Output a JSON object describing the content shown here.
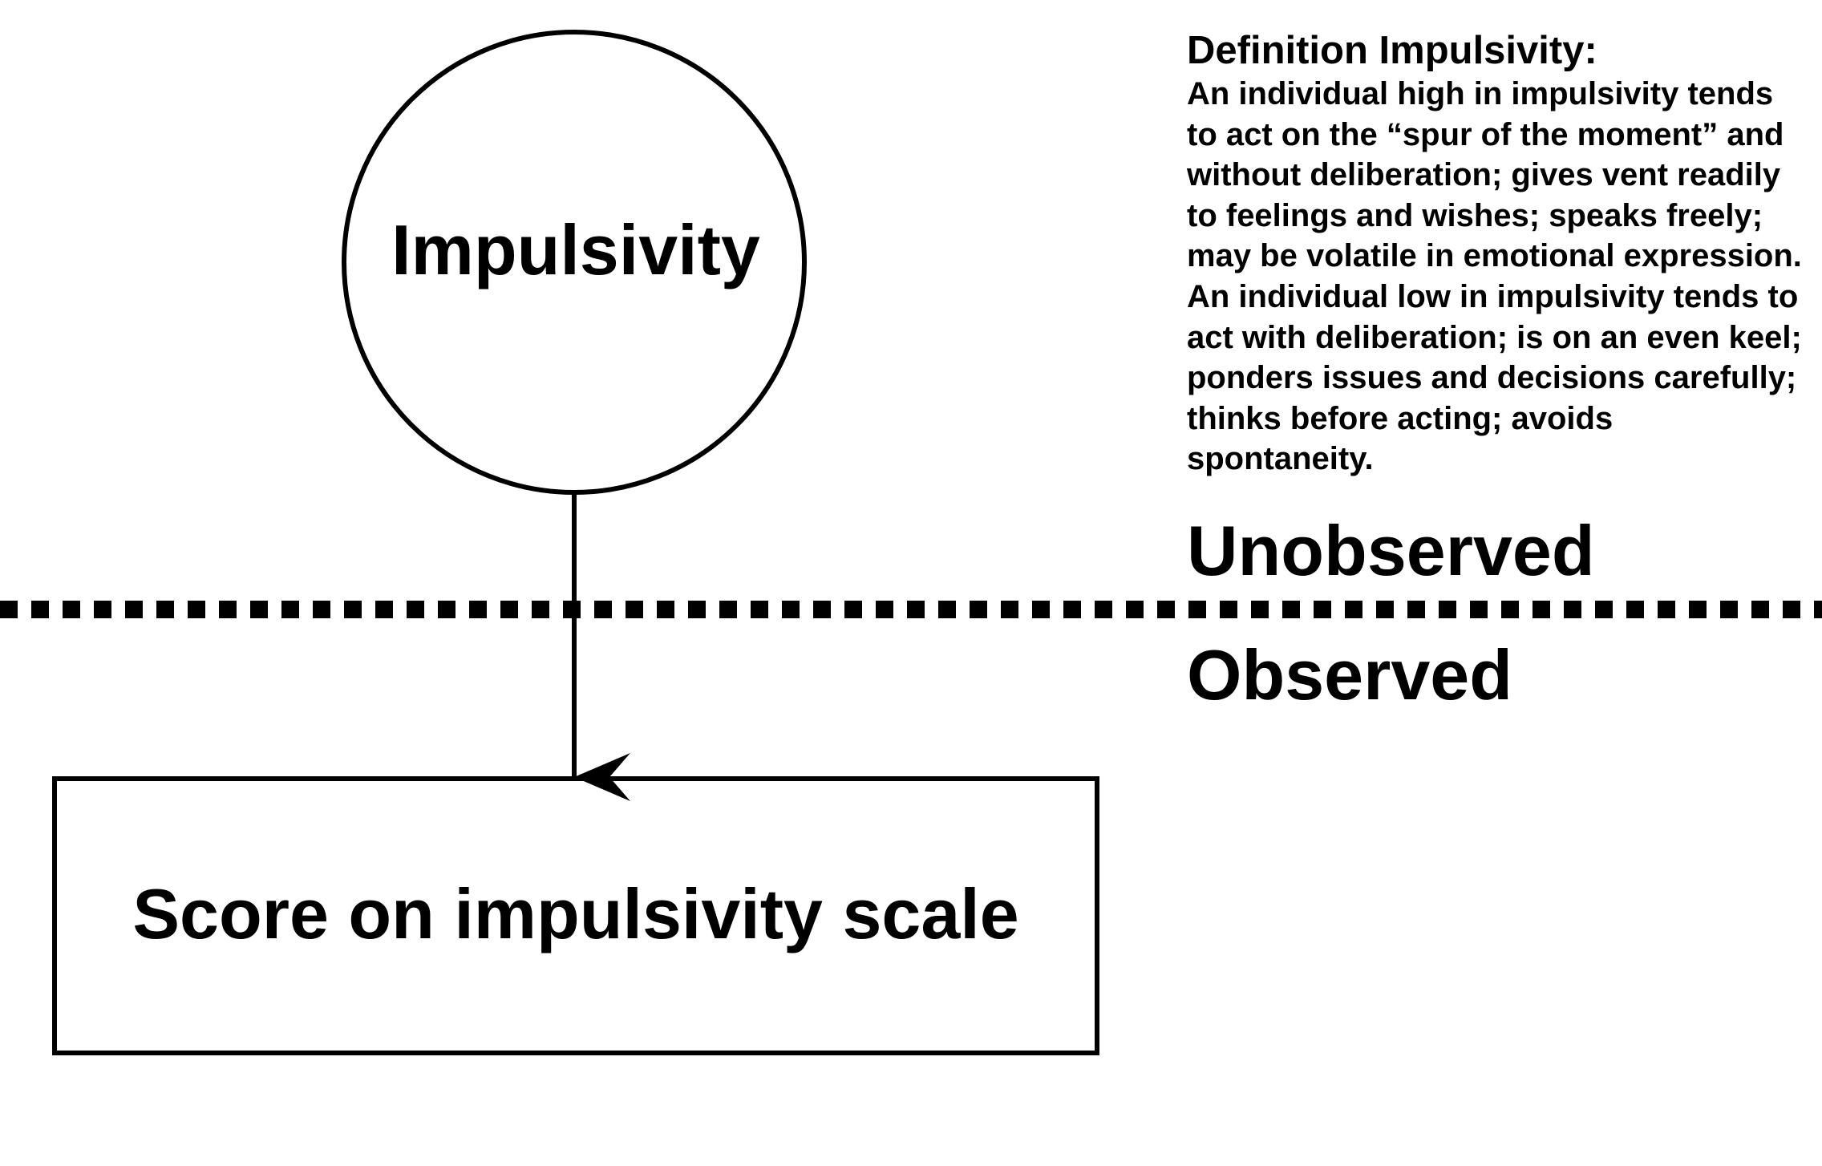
{
  "diagram": {
    "latent_variable": {
      "label": "Impulsivity",
      "shape": "circle"
    },
    "observed_variable": {
      "label": "Score on impulsivity scale",
      "shape": "rectangle"
    },
    "edge": {
      "from": "latent_variable",
      "to": "observed_variable",
      "style": "solid-arrow"
    },
    "boundary": {
      "style": "dotted-line"
    },
    "regions": {
      "above": "Unobserved",
      "below": "Observed"
    },
    "definition": {
      "title": "Definition Impulsivity:",
      "lines": [
        "An individual high in impulsivity tends",
        "to act on the “spur of the moment” and",
        "without deliberation; gives vent readily",
        "to feelings and wishes; speaks freely;",
        "may be volatile in emotional expression.",
        "An individual low in impulsivity tends to",
        "act with deliberation; is on an even keel;",
        "ponders issues and decisions carefully;",
        "thinks before acting; avoids",
        "spontaneity."
      ]
    },
    "colors": {
      "stroke": "#000000",
      "background": "#ffffff"
    }
  }
}
